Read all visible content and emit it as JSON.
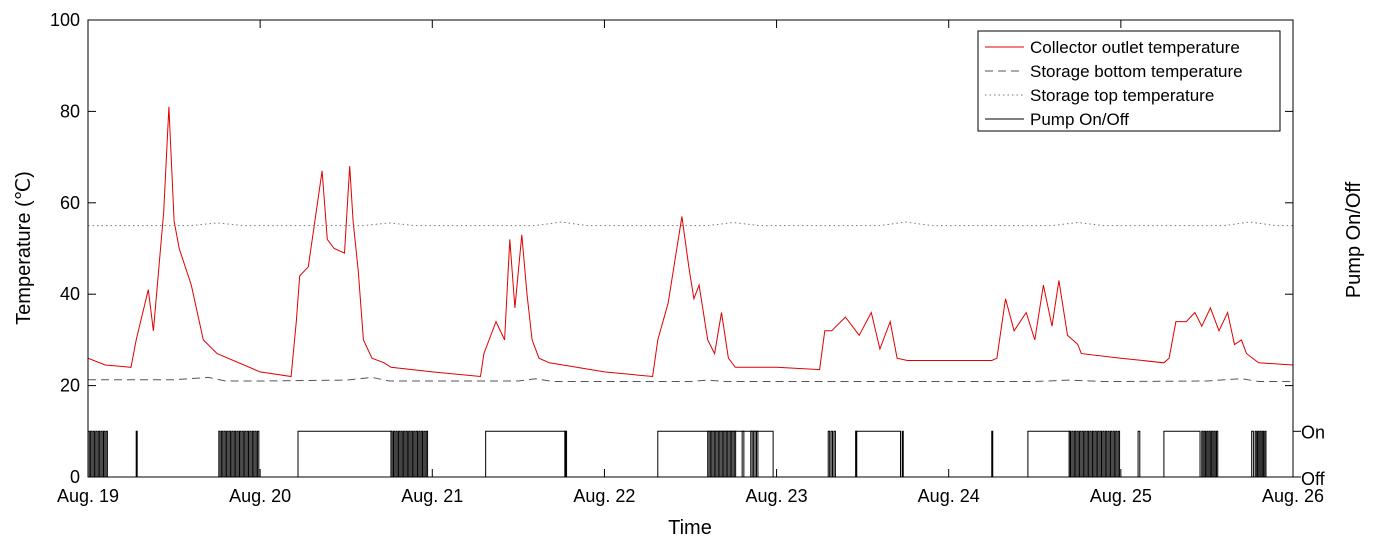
{
  "chart_data": {
    "type": "line",
    "title": "",
    "xlabel": "Time",
    "ylabel": "Temperature (℃)",
    "y2label": "Pump On/Off",
    "xlim": [
      0,
      7
    ],
    "ylim": [
      0,
      100
    ],
    "x_unit": "days from Aug. 19 00:00",
    "x_ticks": [
      {
        "value": 0,
        "label": "Aug. 19"
      },
      {
        "value": 1,
        "label": "Aug. 20"
      },
      {
        "value": 2,
        "label": "Aug. 21"
      },
      {
        "value": 3,
        "label": "Aug. 22"
      },
      {
        "value": 4,
        "label": "Aug. 23"
      },
      {
        "value": 5,
        "label": "Aug. 24"
      },
      {
        "value": 6,
        "label": "Aug. 25"
      },
      {
        "value": 7,
        "label": "Aug. 26"
      }
    ],
    "y_ticks": [
      0,
      20,
      40,
      60,
      80,
      100
    ],
    "y2_ticks": [
      {
        "value": 0,
        "label": "Off"
      },
      {
        "value": 10,
        "label": "On"
      }
    ],
    "grid": false,
    "legend_position": "top-right",
    "series": [
      {
        "name": "Collector outlet temperature",
        "color": "#e00000",
        "style": "solid",
        "x": [
          0,
          0.1,
          0.25,
          0.28,
          0.35,
          0.38,
          0.44,
          0.47,
          0.5,
          0.53,
          0.6,
          0.67,
          0.75,
          1.0,
          1.18,
          1.21,
          1.23,
          1.28,
          1.36,
          1.39,
          1.43,
          1.49,
          1.52,
          1.54,
          1.57,
          1.6,
          1.65,
          1.72,
          1.76,
          2.0,
          2.28,
          2.3,
          2.37,
          2.42,
          2.45,
          2.48,
          2.52,
          2.55,
          2.58,
          2.62,
          2.68,
          2.76,
          3.0,
          3.28,
          3.31,
          3.37,
          3.45,
          3.49,
          3.52,
          3.55,
          3.6,
          3.64,
          3.68,
          3.72,
          3.76,
          4.0,
          4.25,
          4.28,
          4.32,
          4.4,
          4.48,
          4.55,
          4.6,
          4.66,
          4.7,
          4.76,
          4.8,
          4.83,
          5.0,
          5.25,
          5.28,
          5.33,
          5.38,
          5.45,
          5.5,
          5.55,
          5.6,
          5.64,
          5.69,
          5.75,
          5.77,
          6.0,
          6.25,
          6.28,
          6.32,
          6.38,
          6.43,
          6.47,
          6.52,
          6.57,
          6.62,
          6.66,
          6.7,
          6.73,
          6.8,
          7.0
        ],
        "y": [
          26,
          24.5,
          24,
          30,
          41,
          32,
          58,
          81,
          56,
          50,
          42,
          30,
          27,
          23,
          22,
          34,
          44,
          46,
          67,
          52,
          50,
          49,
          68,
          56,
          45,
          30,
          26,
          25,
          24,
          23,
          22,
          27,
          34,
          30,
          52,
          37,
          53,
          40,
          30,
          26,
          25,
          24.5,
          23,
          22,
          30,
          38,
          57,
          46,
          39,
          42,
          30,
          27,
          36,
          26,
          24,
          24,
          23.5,
          32,
          32,
          35,
          31,
          36,
          28,
          34,
          26,
          25.5,
          25.5,
          25.5,
          25.5,
          25.5,
          26,
          39,
          32,
          36,
          30,
          42,
          33,
          43,
          31,
          29,
          27,
          26,
          25,
          26,
          34,
          34,
          36,
          33,
          37,
          32,
          36,
          29,
          30,
          27,
          25,
          24.5
        ]
      },
      {
        "name": "Storage bottom temperature",
        "color": "#555555",
        "style": "dashed",
        "x": [
          0,
          0.5,
          0.7,
          0.8,
          1.0,
          1.5,
          1.65,
          1.75,
          2.0,
          2.5,
          2.6,
          2.7,
          3.0,
          3.5,
          3.6,
          3.7,
          4.0,
          4.5,
          5.0,
          5.5,
          5.7,
          5.9,
          6.0,
          6.5,
          6.7,
          6.8,
          7.0
        ],
        "y": [
          21.3,
          21.3,
          21.8,
          21,
          21,
          21.2,
          21.8,
          21,
          21,
          21,
          21.5,
          20.9,
          20.9,
          20.9,
          21.2,
          20.9,
          20.9,
          20.9,
          20.9,
          20.9,
          21.2,
          20.9,
          20.9,
          21,
          21.5,
          20.9,
          20.9
        ]
      },
      {
        "name": "Storage top temperature",
        "color": "#777777",
        "style": "dotted",
        "x": [
          0,
          0.6,
          0.75,
          0.9,
          1.0,
          1.6,
          1.75,
          1.9,
          2.0,
          2.6,
          2.75,
          2.9,
          3.0,
          3.6,
          3.75,
          3.9,
          4.0,
          4.6,
          4.75,
          4.9,
          5.0,
          5.6,
          5.75,
          5.9,
          6.0,
          6.6,
          6.75,
          6.9,
          7.0
        ],
        "y": [
          55,
          55,
          55.6,
          55,
          55,
          55,
          55.6,
          55,
          55,
          55,
          55.8,
          55,
          55,
          55,
          55.7,
          55,
          55,
          55,
          55.8,
          55,
          55,
          55,
          55.7,
          55,
          55,
          55,
          55.8,
          55,
          55
        ]
      },
      {
        "name": "Pump On/Off",
        "color": "#000000",
        "style": "solid",
        "axis": "secondary",
        "on_intervals": [
          [
            1.22,
            1.76
          ],
          [
            2.31,
            2.78
          ],
          [
            3.31,
            3.98
          ],
          [
            4.46,
            4.72
          ],
          [
            5.46,
            5.7
          ],
          [
            6.25,
            6.46
          ]
        ],
        "cycling_intervals": [
          [
            0.0,
            0.12
          ],
          [
            0.28,
            0.29
          ],
          [
            0.76,
            1.0
          ],
          [
            1.76,
            1.98
          ],
          [
            2.77,
            2.78
          ],
          [
            3.6,
            3.77
          ],
          [
            3.8,
            3.82
          ],
          [
            3.85,
            3.9
          ],
          [
            4.3,
            4.35
          ],
          [
            4.46,
            4.47
          ],
          [
            4.73,
            4.74
          ],
          [
            5.25,
            5.26
          ],
          [
            5.7,
            6.0
          ],
          [
            6.1,
            6.12
          ],
          [
            6.47,
            6.57
          ],
          [
            6.76,
            6.78
          ],
          [
            6.78,
            6.85
          ]
        ]
      }
    ]
  }
}
